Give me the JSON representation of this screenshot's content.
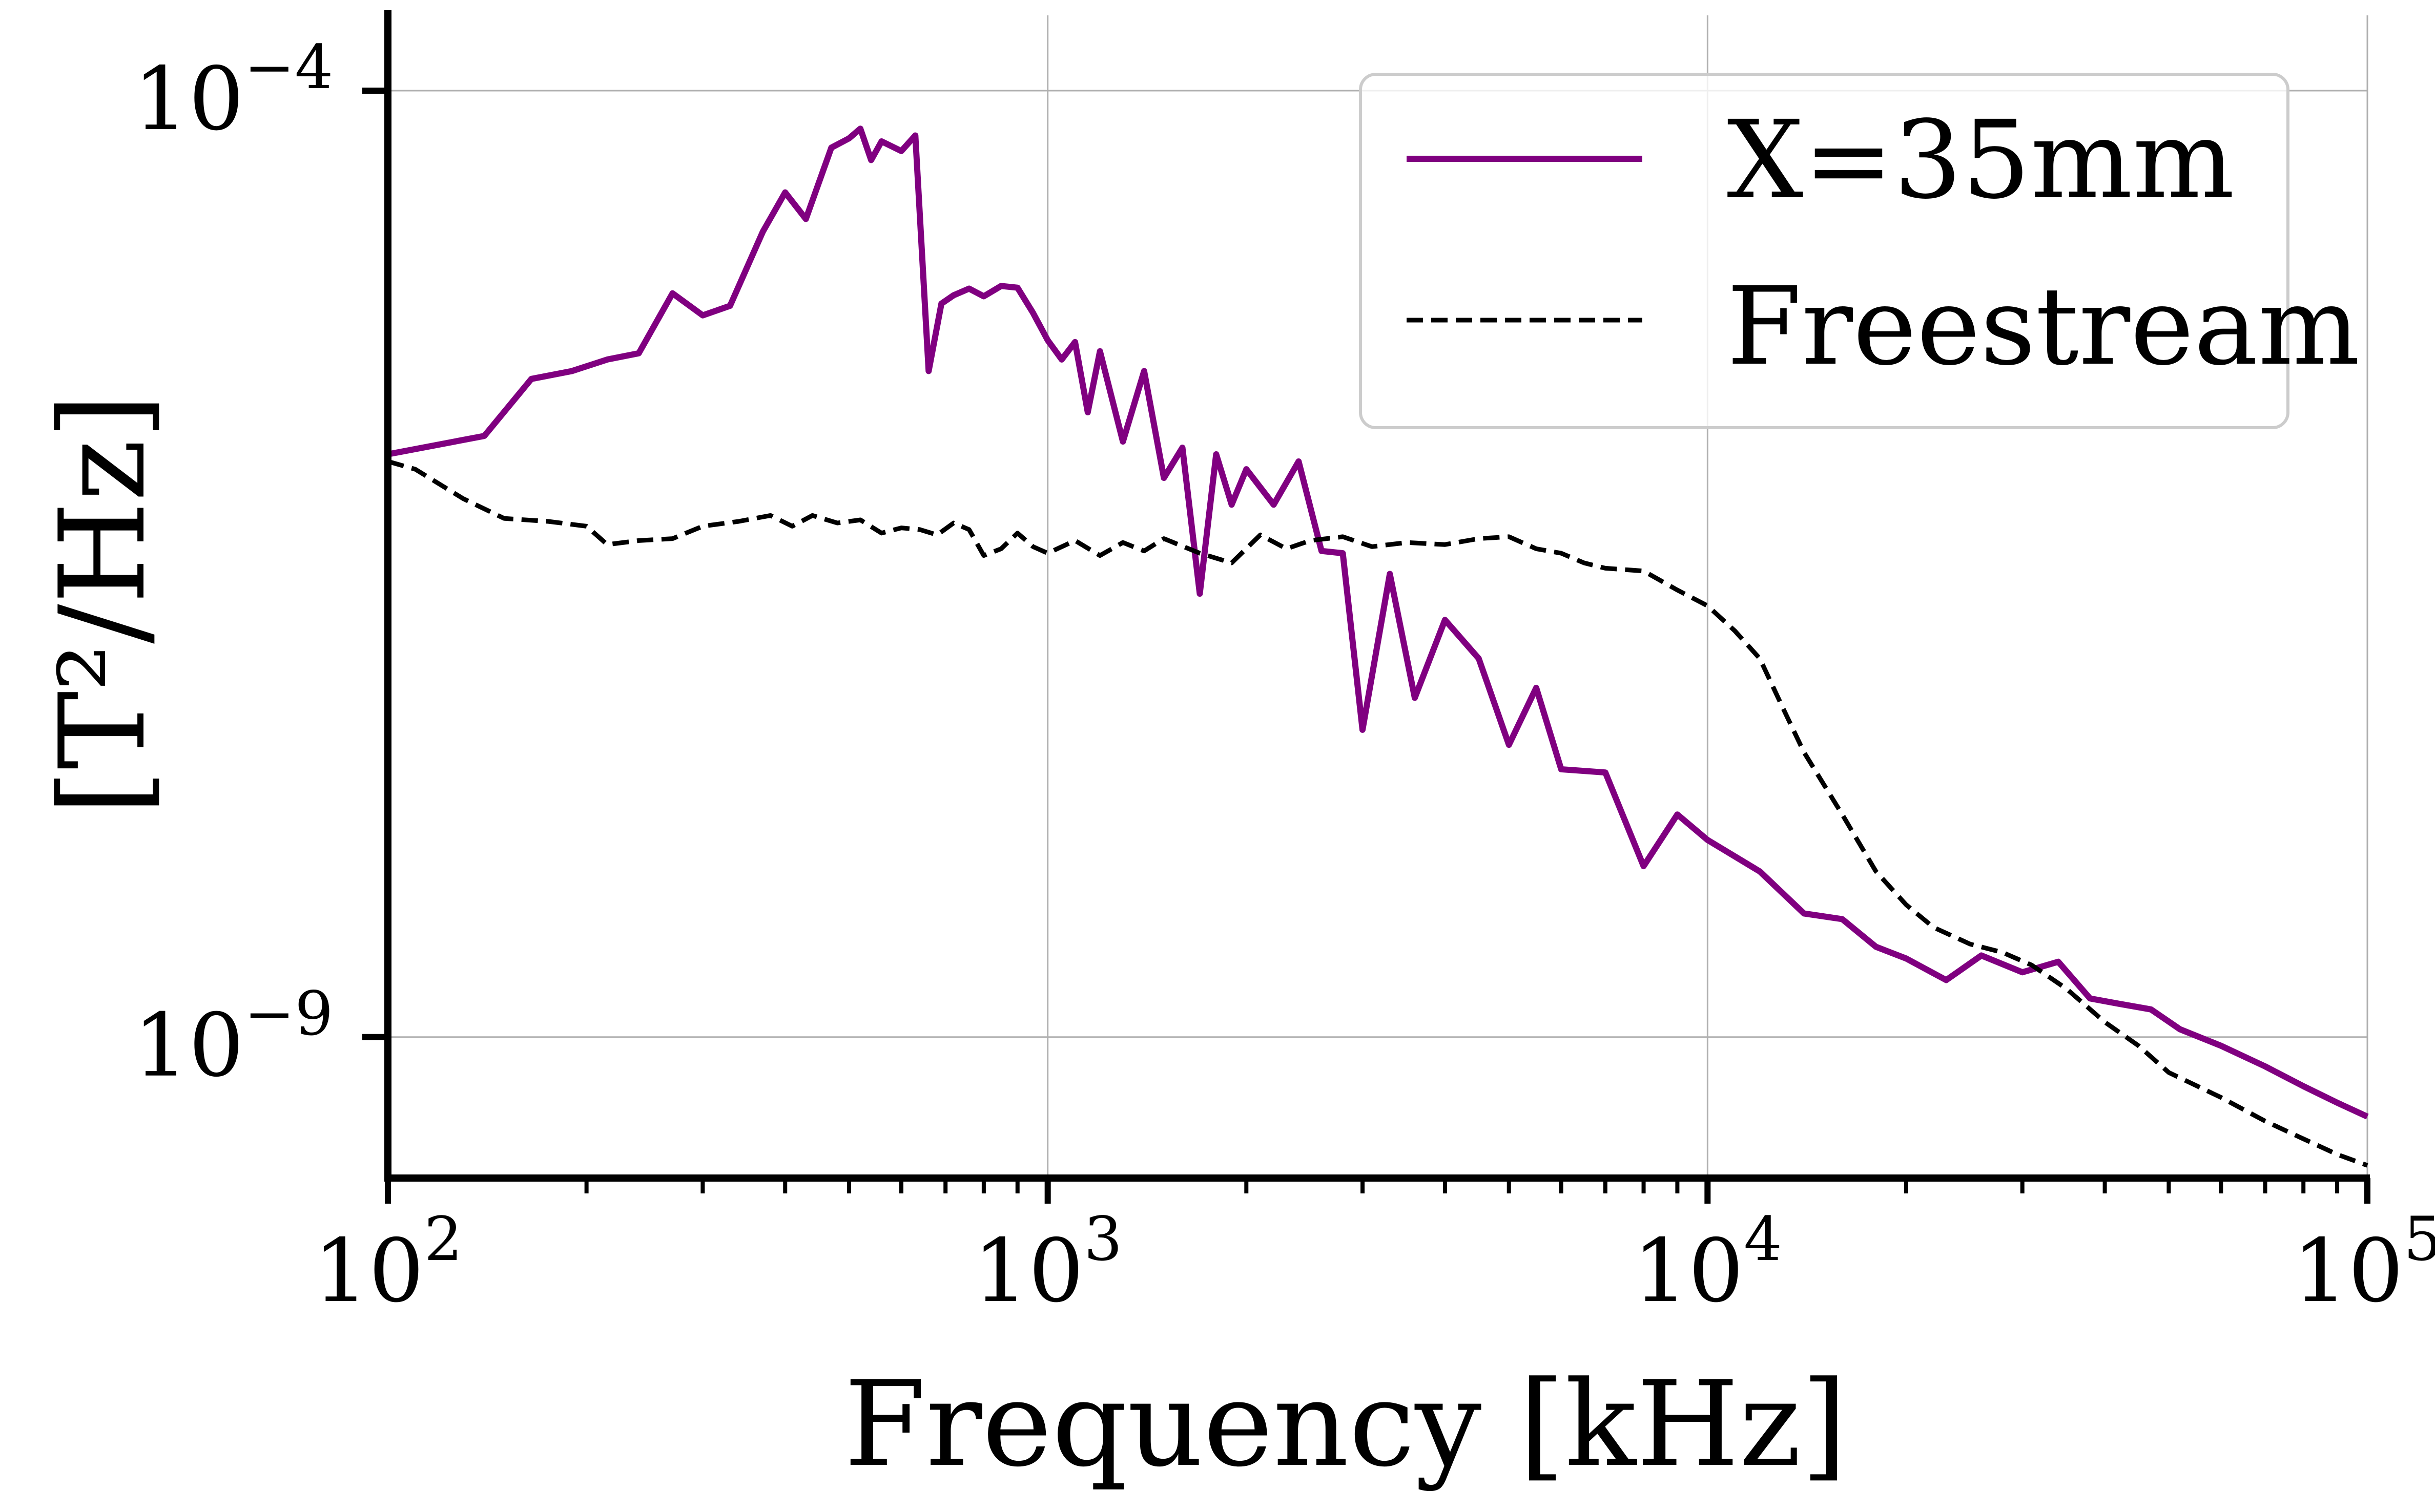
{
  "chart_data": {
    "type": "line",
    "title": "",
    "xlabel": "Frequency [kHz]",
    "ylabel": "[T²/Hz]",
    "xscale": "log",
    "yscale": "log",
    "xlim": [
      100,
      100000
    ],
    "ylim": [
      1.8e-10,
      0.00025
    ],
    "grid": true,
    "legend_position": "top-right",
    "x_ticks": [
      {
        "value": 100,
        "base": "10",
        "exp": "2"
      },
      {
        "value": 1000,
        "base": "10",
        "exp": "3"
      },
      {
        "value": 10000,
        "base": "10",
        "exp": "4"
      },
      {
        "value": 100000,
        "base": "10",
        "exp": "5"
      }
    ],
    "y_ticks": [
      {
        "value": 0.0001,
        "base": "10",
        "exp": "−4"
      },
      {
        "value": 1e-09,
        "base": "10",
        "exp": "−9"
      }
    ],
    "series": [
      {
        "name": "X=35mm",
        "color": "#800080",
        "style": "solid",
        "x": [
          100,
          140,
          165,
          190,
          215,
          240,
          270,
          300,
          330,
          370,
          400,
          430,
          470,
          500,
          520,
          540,
          560,
          600,
          630,
          660,
          690,
          720,
          760,
          800,
          850,
          900,
          950,
          1000,
          1050,
          1100,
          1150,
          1200,
          1300,
          1400,
          1500,
          1600,
          1700,
          1800,
          1900,
          2000,
          2200,
          2400,
          2600,
          2800,
          3000,
          3300,
          3600,
          4000,
          4500,
          5000,
          5500,
          6000,
          7000,
          8000,
          9000,
          10000,
          12000,
          14000,
          16000,
          18000,
          20000,
          23000,
          26000,
          30000,
          34000,
          38000,
          42000,
          47000,
          52000,
          60000,
          70000,
          80000,
          90000,
          100000
        ],
        "y": [
          1.2e-06,
          1.5e-06,
          3e-06,
          3.3e-06,
          3.8e-06,
          4.1e-06,
          8.5e-06,
          6.5e-06,
          7.3e-06,
          1.8e-05,
          2.9e-05,
          2.1e-05,
          5e-05,
          5.6e-05,
          6.3e-05,
          4.3e-05,
          5.4e-05,
          4.8e-05,
          5.8e-05,
          3.3e-06,
          7.5e-06,
          8.3e-06,
          9e-06,
          8.2e-06,
          9.3e-06,
          9.1e-06,
          6.7e-06,
          4.8e-06,
          3.8e-06,
          4.7e-06,
          2e-06,
          4.2e-06,
          1.4e-06,
          3.3e-06,
          9e-07,
          1.3e-06,
          2.2e-07,
          1.2e-06,
          6.5e-07,
          1e-06,
          6.5e-07,
          1.1e-06,
          3.7e-07,
          3.6e-07,
          4.2e-08,
          2.8e-07,
          6.2e-08,
          1.6e-07,
          1e-07,
          3.5e-08,
          7e-08,
          2.6e-08,
          2.5e-08,
          8e-09,
          1.5e-08,
          1.1e-08,
          7.5e-09,
          4.5e-09,
          4.2e-09,
          3e-09,
          2.6e-09,
          2e-09,
          2.7e-09,
          2.2e-09,
          2.5e-09,
          1.6e-09,
          1.5e-09,
          1.4e-09,
          1.1e-09,
          9e-10,
          7e-10,
          5.5e-10,
          4.5e-10,
          3.8e-10
        ]
      },
      {
        "name": "Freestream",
        "color": "#000000",
        "style": "dashed",
        "x": [
          100,
          110,
          130,
          150,
          175,
          200,
          215,
          240,
          270,
          300,
          340,
          380,
          410,
          440,
          480,
          520,
          560,
          600,
          640,
          680,
          720,
          760,
          800,
          850,
          900,
          950,
          1000,
          1100,
          1200,
          1300,
          1400,
          1500,
          1700,
          1900,
          2100,
          2300,
          2500,
          2800,
          3100,
          3500,
          4000,
          4500,
          5000,
          5500,
          6000,
          6500,
          7000,
          8000,
          9000,
          10000,
          11000,
          12000,
          13000,
          14000,
          16000,
          18000,
          20000,
          22000,
          25000,
          28000,
          31000,
          35000,
          40000,
          45000,
          50000,
          60000,
          70000,
          80000,
          90000,
          100000
        ],
        "y": [
          1.1e-06,
          1e-06,
          7e-07,
          5.5e-07,
          5.3e-07,
          5e-07,
          4e-07,
          4.2e-07,
          4.3e-07,
          5e-07,
          5.3e-07,
          5.7e-07,
          5e-07,
          5.7e-07,
          5.2e-07,
          5.4e-07,
          4.6e-07,
          4.9e-07,
          4.8e-07,
          4.5e-07,
          5.2e-07,
          4.8e-07,
          3.5e-07,
          3.8e-07,
          4.6e-07,
          3.9e-07,
          3.6e-07,
          4.2e-07,
          3.5e-07,
          4.1e-07,
          3.7e-07,
          4.3e-07,
          3.6e-07,
          3.2e-07,
          4.5e-07,
          3.8e-07,
          4.2e-07,
          4.4e-07,
          3.9e-07,
          4.1e-07,
          4e-07,
          4.3e-07,
          4.4e-07,
          3.8e-07,
          3.6e-07,
          3.2e-07,
          3e-07,
          2.9e-07,
          2.3e-07,
          1.9e-07,
          1.4e-07,
          1e-07,
          5.5e-08,
          3.2e-08,
          1.5e-08,
          7.5e-09,
          5e-09,
          3.8e-09,
          3.1e-09,
          2.8e-09,
          2.4e-09,
          1.8e-09,
          1.2e-09,
          9e-10,
          6.5e-10,
          4.8e-10,
          3.6e-10,
          2.9e-10,
          2.4e-10,
          2.1e-10
        ]
      }
    ]
  }
}
